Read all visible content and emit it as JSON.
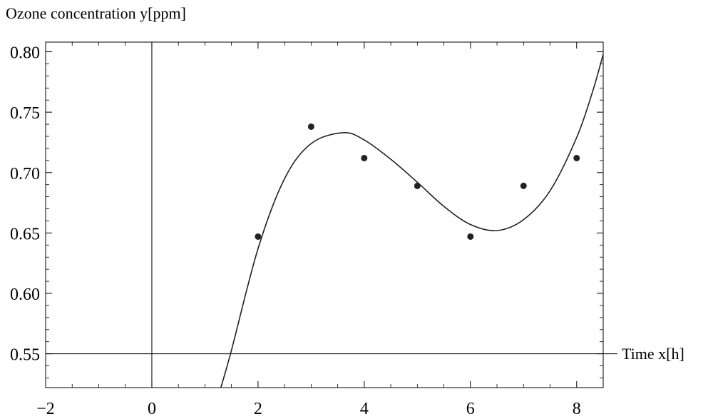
{
  "chart_data": {
    "type": "scatter",
    "ylabel": "Ozone concentration y[ppm]",
    "xlabel": "Time x[h]",
    "xlim": [
      -2,
      8.5
    ],
    "ylim": [
      0.522,
      0.808
    ],
    "x_ticks": [
      -2,
      0,
      2,
      4,
      6,
      8
    ],
    "x_tick_labels": [
      "−2",
      "0",
      "2",
      "4",
      "6",
      "8"
    ],
    "y_ticks": [
      0.55,
      0.6,
      0.65,
      0.7,
      0.75,
      0.8
    ],
    "y_tick_labels": [
      "0.55",
      "0.60",
      "0.65",
      "0.70",
      "0.75",
      "0.80"
    ],
    "axis_lines": {
      "x_at_y": 0.55,
      "y_at_x": 0
    },
    "points": [
      {
        "x": 2,
        "y": 0.647
      },
      {
        "x": 3,
        "y": 0.738
      },
      {
        "x": 4,
        "y": 0.712
      },
      {
        "x": 5,
        "y": 0.689
      },
      {
        "x": 6,
        "y": 0.647
      },
      {
        "x": 7,
        "y": 0.689
      },
      {
        "x": 8,
        "y": 0.712
      }
    ],
    "fit_curve": [
      {
        "x": 1.3,
        "y": 0.522
      },
      {
        "x": 1.5,
        "y": 0.553
      },
      {
        "x": 2.0,
        "y": 0.637
      },
      {
        "x": 2.5,
        "y": 0.695
      },
      {
        "x": 3.0,
        "y": 0.724
      },
      {
        "x": 3.6,
        "y": 0.733
      },
      {
        "x": 4.0,
        "y": 0.727
      },
      {
        "x": 4.5,
        "y": 0.711
      },
      {
        "x": 5.0,
        "y": 0.692
      },
      {
        "x": 5.5,
        "y": 0.672
      },
      {
        "x": 6.0,
        "y": 0.657
      },
      {
        "x": 6.5,
        "y": 0.652
      },
      {
        "x": 7.0,
        "y": 0.661
      },
      {
        "x": 7.5,
        "y": 0.685
      },
      {
        "x": 8.0,
        "y": 0.729
      },
      {
        "x": 8.3,
        "y": 0.767
      },
      {
        "x": 8.5,
        "y": 0.798
      }
    ],
    "grid": false,
    "frame": true
  }
}
